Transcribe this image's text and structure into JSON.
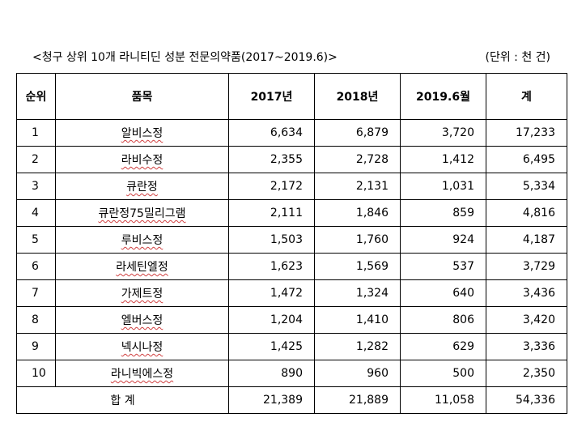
{
  "header": {
    "title": "<청구 상위 10개 라니티딘 성분 전문의약품(2017~2019.6)>",
    "unit": "(단위 : 천 건)"
  },
  "table": {
    "columns": [
      "순위",
      "품목",
      "2017년",
      "2018년",
      "2019.6월",
      "계"
    ],
    "rows": [
      [
        "1",
        "알비스정",
        "6,634",
        "6,879",
        "3,720",
        "17,233"
      ],
      [
        "2",
        "라비수정",
        "2,355",
        "2,728",
        "1,412",
        "6,495"
      ],
      [
        "3",
        "큐란정",
        "2,172",
        "2,131",
        "1,031",
        "5,334"
      ],
      [
        "4",
        "큐란정75밀리그램",
        "2,111",
        "1,846",
        "859",
        "4,816"
      ],
      [
        "5",
        "루비스정",
        "1,503",
        "1,760",
        "924",
        "4,187"
      ],
      [
        "6",
        "라세틴엘정",
        "1,623",
        "1,569",
        "537",
        "3,729"
      ],
      [
        "7",
        "가제트정",
        "1,472",
        "1,324",
        "640",
        "3,436"
      ],
      [
        "8",
        "엘버스정",
        "1,204",
        "1,410",
        "806",
        "3,420"
      ],
      [
        "9",
        "넥시나정",
        "1,425",
        "1,282",
        "629",
        "3,336"
      ],
      [
        "10",
        "라니빅에스정",
        "890",
        "960",
        "500",
        "2,350"
      ]
    ],
    "total": [
      "합 계",
      "21,389",
      "21,889",
      "11,058",
      "54,336"
    ]
  }
}
